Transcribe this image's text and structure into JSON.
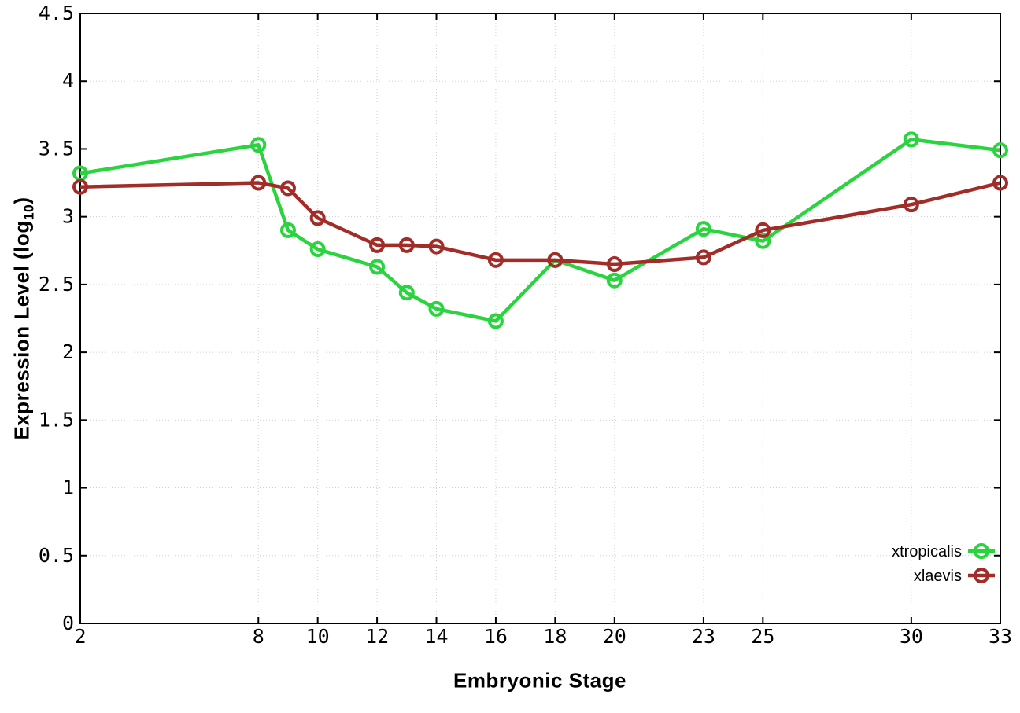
{
  "figure": {
    "background": "#ffffff",
    "border_color": "#000000",
    "grid_color": "#cfcfcf",
    "tick_label_color": "#000000"
  },
  "chart_data": {
    "type": "line",
    "title": "",
    "xlabel": "Embryonic Stage",
    "ylabel": "Expression Level (log10)",
    "ylabel_parts": {
      "main": "Expression Level (log",
      "sub": "10",
      "end": ")"
    },
    "xlim": [
      2,
      33
    ],
    "ylim": [
      0,
      4.5
    ],
    "xticks": [
      2,
      8,
      10,
      12,
      14,
      16,
      18,
      20,
      23,
      25,
      30,
      33
    ],
    "yticks": [
      0,
      0.5,
      1,
      1.5,
      2,
      2.5,
      3,
      3.5,
      4,
      4.5
    ],
    "grid": true,
    "legend_position": "bottom-right",
    "x": [
      2,
      8,
      9,
      10,
      12,
      13,
      14,
      16,
      18,
      20,
      23,
      25,
      30,
      33
    ],
    "series": [
      {
        "name": "xtropicalis",
        "color": "#2ad43e",
        "values": [
          3.32,
          3.53,
          2.9,
          2.76,
          2.63,
          2.44,
          2.32,
          2.23,
          2.68,
          2.53,
          2.91,
          2.82,
          3.57,
          3.49
        ]
      },
      {
        "name": "xlaevis",
        "color": "#a22c28",
        "values": [
          3.22,
          3.25,
          3.21,
          2.99,
          2.79,
          2.79,
          2.78,
          2.68,
          2.68,
          2.65,
          2.7,
          2.9,
          3.09,
          3.25
        ]
      }
    ]
  }
}
